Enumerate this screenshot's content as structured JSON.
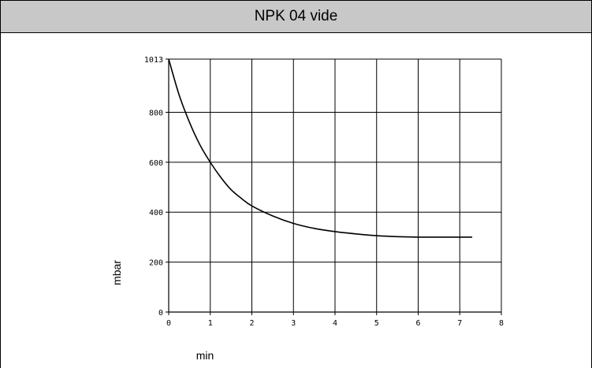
{
  "chart_data": {
    "type": "line",
    "title": "NPK 04 vide",
    "xlabel": "min",
    "ylabel": "mbar",
    "xlim": [
      0,
      8
    ],
    "ylim": [
      0,
      1013
    ],
    "x_ticks": [
      "0",
      "1",
      "2",
      "3",
      "4",
      "5",
      "6",
      "7",
      "8"
    ],
    "y_ticks": [
      "0",
      "200",
      "400",
      "600",
      "800",
      "1013"
    ],
    "y_tick_values": [
      0,
      200,
      400,
      600,
      800,
      1013
    ],
    "grid": true,
    "series": [
      {
        "color": "#000000",
        "x": [
          0,
          0.25,
          0.5,
          0.75,
          1,
          1.25,
          1.5,
          1.75,
          2,
          2.5,
          3,
          3.5,
          4,
          4.5,
          5,
          5.5,
          6,
          6.5,
          7,
          7.3
        ],
        "y": [
          1013,
          870,
          760,
          670,
          600,
          540,
          490,
          455,
          425,
          385,
          355,
          335,
          322,
          313,
          306,
          302,
          300,
          300,
          300,
          300
        ]
      }
    ]
  }
}
